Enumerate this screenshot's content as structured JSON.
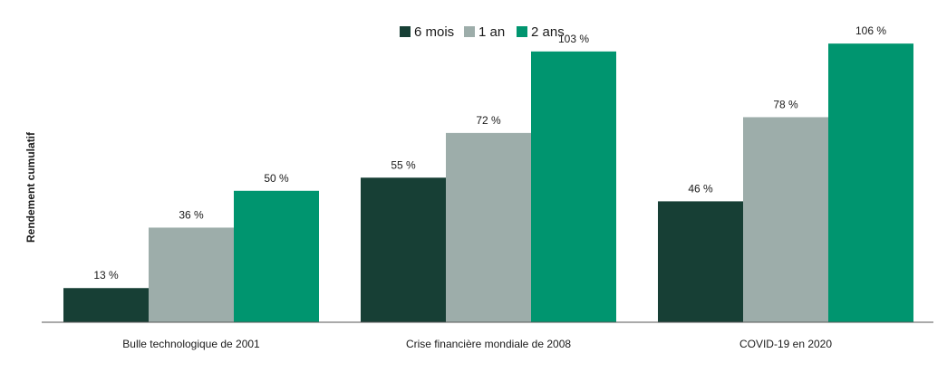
{
  "chart_data": {
    "type": "bar",
    "title": "",
    "xlabel": "",
    "ylabel": "Rendement cumulatif",
    "categories": [
      "Bulle technologique de 2001",
      "Crise financière mondiale de 2008",
      "COVID-19 en 2020"
    ],
    "series": [
      {
        "name": "6 mois",
        "color": "#173f35",
        "values": [
          13,
          55,
          46
        ]
      },
      {
        "name": "1 an",
        "color": "#9dadaa",
        "values": [
          36,
          72,
          78
        ]
      },
      {
        "name": "2 ans",
        "color": "#00956f",
        "values": [
          50,
          103,
          106
        ]
      }
    ],
    "value_suffix": " %",
    "ylim": [
      0,
      115
    ],
    "grid": false,
    "legend_position": "top-center"
  }
}
